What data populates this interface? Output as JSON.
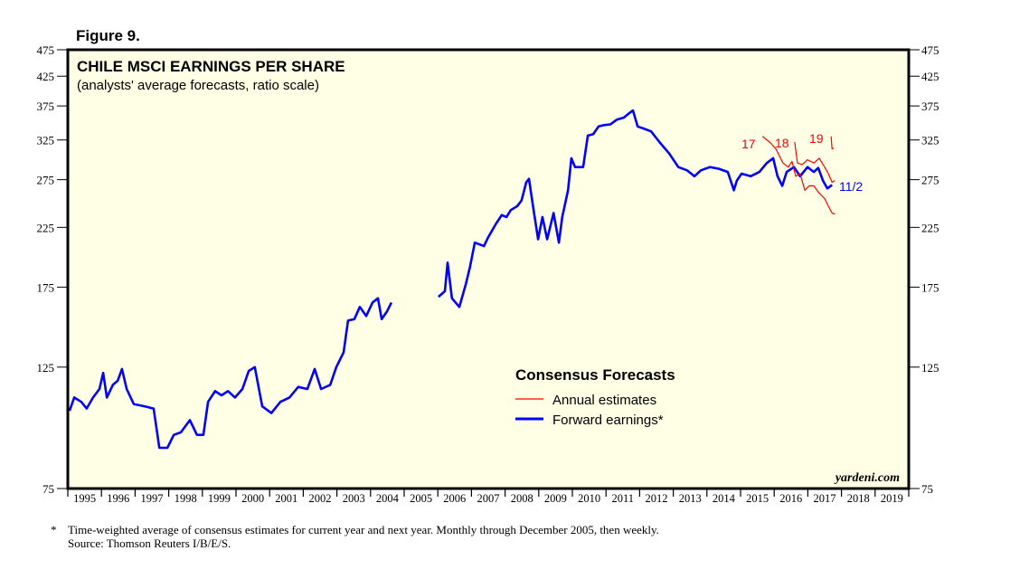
{
  "figure_label": "Figure 9.",
  "chart_data": {
    "type": "line",
    "title": "CHILE MSCI EARNINGS PER SHARE",
    "subtitle": "(analysts' average forecasts, ratio scale)",
    "yscale": "log",
    "ylim": [
      75,
      475
    ],
    "xlim": [
      1995,
      2020
    ],
    "y_ticks": [
      475,
      425,
      375,
      325,
      275,
      225,
      175,
      125,
      75
    ],
    "x_tick_labels": [
      "1995",
      "1996",
      "1997",
      "1998",
      "1999",
      "2000",
      "2001",
      "2002",
      "2003",
      "2004",
      "2005",
      "2006",
      "2007",
      "2008",
      "2009",
      "2010",
      "2011",
      "2012",
      "2013",
      "2014",
      "2015",
      "2016",
      "2017",
      "2018",
      "2019"
    ],
    "legend": {
      "title": "Consensus Forecasts",
      "placement": "bottom-center"
    },
    "colors": {
      "annual": "#ff0000",
      "forward": "#0000ff",
      "background": "#ffffe6"
    },
    "series": [
      {
        "name": "Forward earnings*",
        "color": "#0000ff",
        "points": [
          [
            1995.05,
            104
          ],
          [
            1995.19,
            110
          ],
          [
            1995.4,
            108
          ],
          [
            1995.56,
            105
          ],
          [
            1995.75,
            110
          ],
          [
            1995.94,
            114
          ],
          [
            1996.05,
            122
          ],
          [
            1996.16,
            110
          ],
          [
            1996.34,
            116
          ],
          [
            1996.48,
            118
          ],
          [
            1996.61,
            124
          ],
          [
            1996.75,
            114
          ],
          [
            1996.96,
            107
          ],
          [
            1997.28,
            106
          ],
          [
            1997.55,
            105
          ],
          [
            1997.72,
            89
          ],
          [
            1997.96,
            89
          ],
          [
            1998.15,
            94
          ],
          [
            1998.36,
            95
          ],
          [
            1998.63,
            100
          ],
          [
            1998.84,
            94
          ],
          [
            1999.03,
            94
          ],
          [
            1999.17,
            108
          ],
          [
            1999.38,
            113
          ],
          [
            1999.57,
            111
          ],
          [
            1999.76,
            113
          ],
          [
            1999.97,
            110
          ],
          [
            2000.19,
            114
          ],
          [
            2000.38,
            123
          ],
          [
            2000.56,
            125
          ],
          [
            2000.78,
            106
          ],
          [
            2001.05,
            103
          ],
          [
            2001.32,
            108
          ],
          [
            2001.59,
            110
          ],
          [
            2001.85,
            115
          ],
          [
            2002.12,
            114
          ],
          [
            2002.34,
            124
          ],
          [
            2002.53,
            114
          ],
          [
            2002.8,
            116
          ],
          [
            2002.98,
            125
          ],
          [
            2003.2,
            133
          ],
          [
            2003.33,
            152
          ],
          [
            2003.52,
            153
          ],
          [
            2003.68,
            161
          ],
          [
            2003.87,
            155
          ],
          [
            2004.06,
            164
          ],
          [
            2004.22,
            167
          ],
          [
            2004.33,
            153
          ],
          [
            2004.49,
            158
          ],
          [
            2004.62,
            164
          ],
          null,
          [
            2006.02,
            168
          ],
          [
            2006.21,
            172
          ],
          [
            2006.29,
            194
          ],
          [
            2006.42,
            167
          ],
          [
            2006.64,
            161
          ],
          [
            2006.83,
            177
          ],
          [
            2006.96,
            191
          ],
          [
            2007.1,
            211
          ],
          [
            2007.37,
            208
          ],
          [
            2007.5,
            216
          ],
          [
            2007.72,
            228
          ],
          [
            2007.9,
            237
          ],
          [
            2008.04,
            235
          ],
          [
            2008.17,
            242
          ],
          [
            2008.36,
            246
          ],
          [
            2008.49,
            252
          ],
          [
            2008.63,
            272
          ],
          [
            2008.71,
            276
          ],
          [
            2008.84,
            244
          ],
          [
            2008.98,
            214
          ],
          [
            2009.11,
            235
          ],
          [
            2009.25,
            214
          ],
          [
            2009.44,
            239
          ],
          [
            2009.6,
            211
          ],
          [
            2009.7,
            235
          ],
          [
            2009.87,
            263
          ],
          [
            2009.97,
            301
          ],
          [
            2010.08,
            290
          ],
          [
            2010.32,
            290
          ],
          [
            2010.46,
            331
          ],
          [
            2010.62,
            333
          ],
          [
            2010.78,
            344
          ],
          [
            2010.94,
            346
          ],
          [
            2011.13,
            347
          ],
          [
            2011.32,
            354
          ],
          [
            2011.53,
            357
          ],
          [
            2011.67,
            363
          ],
          [
            2011.8,
            368
          ],
          [
            2011.94,
            344
          ],
          [
            2012.12,
            341
          ],
          [
            2012.34,
            337
          ],
          [
            2012.61,
            321
          ],
          [
            2012.88,
            307
          ],
          [
            2013.15,
            290
          ],
          [
            2013.41,
            286
          ],
          [
            2013.63,
            279
          ],
          [
            2013.82,
            286
          ],
          [
            2014.09,
            290
          ],
          [
            2014.35,
            288
          ],
          [
            2014.62,
            284
          ],
          [
            2014.8,
            263
          ],
          [
            2014.89,
            274
          ],
          [
            2015.03,
            282
          ],
          [
            2015.3,
            279
          ],
          [
            2015.56,
            284
          ],
          [
            2015.78,
            295
          ],
          [
            2015.97,
            301
          ],
          [
            2016.1,
            279
          ],
          [
            2016.24,
            268
          ],
          [
            2016.37,
            284
          ],
          [
            2016.59,
            290
          ],
          [
            2016.77,
            279
          ],
          [
            2016.99,
            290
          ],
          [
            2017.18,
            284
          ],
          [
            2017.31,
            289
          ],
          [
            2017.45,
            274
          ],
          [
            2017.58,
            265
          ],
          [
            2017.72,
            269
          ]
        ]
      },
      {
        "name": "17",
        "color": "#ff0000",
        "points": [
          [
            2015.65,
            330
          ],
          [
            2015.89,
            321
          ],
          [
            2016.05,
            313
          ],
          [
            2016.26,
            295
          ],
          [
            2016.42,
            290
          ],
          [
            2016.53,
            297
          ],
          [
            2016.64,
            279
          ],
          [
            2016.77,
            282
          ],
          [
            2016.91,
            263
          ],
          [
            2017.04,
            268
          ],
          [
            2017.18,
            268
          ],
          [
            2017.31,
            261
          ],
          [
            2017.5,
            254
          ],
          [
            2017.61,
            246
          ],
          [
            2017.72,
            239
          ],
          [
            2017.8,
            238
          ]
        ]
      },
      {
        "name": "18",
        "color": "#ff0000",
        "points": [
          [
            2016.61,
            322
          ],
          [
            2016.69,
            295
          ],
          [
            2016.83,
            293
          ],
          [
            2016.99,
            299
          ],
          [
            2017.18,
            295
          ],
          [
            2017.34,
            301
          ],
          [
            2017.5,
            290
          ],
          [
            2017.61,
            282
          ],
          [
            2017.72,
            272
          ],
          [
            2017.8,
            274
          ]
        ]
      },
      {
        "name": "19",
        "color": "#ff0000",
        "points": [
          [
            2017.69,
            330
          ],
          [
            2017.72,
            313
          ],
          [
            2017.77,
            314
          ]
        ]
      }
    ],
    "annotations": {
      "y17": "17",
      "y18": "18",
      "y19": "19",
      "latest": "11/2"
    },
    "legend_entries": [
      "Annual estimates",
      "Forward earnings*"
    ],
    "watermark": "yardeni.com"
  },
  "footnote": {
    "star": "*",
    "line1": "Time-weighted average of consensus estimates for current year and next year. Monthly through December 2005, then weekly.",
    "line2": "Source: Thomson Reuters I/B/E/S."
  }
}
